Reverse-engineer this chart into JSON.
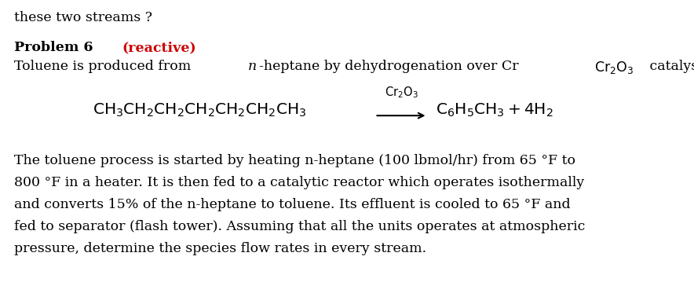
{
  "header": "these two streams ?",
  "prob_bold": "Problem 6 ",
  "prob_red": "(reactive)",
  "toluene_line_pre": "Toluene is produced from ",
  "toluene_line_n": "n",
  "toluene_line_post": "-heptane by dehydrogenation over Cr",
  "toluene_cr2o3": "Cr₂O₃",
  "toluene_catalyst": " catalyst:",
  "eq_lhs": "$\\mathregular{CH_3CH_2CH_2CH_2CH_2CH_2CH_3}$",
  "eq_arrow": "⟶",
  "eq_catalyst_top": "$\\mathregular{Cr_2O_3}$",
  "eq_rhs": "$\\mathregular{C_6H_5CH_3 + 4H_2}$",
  "para1": "The toluene process is started by heating n-heptane (100 lbmol/hr) from 65 °F to",
  "para2": "800 °F in a heater. It is then fed to a catalytic reactor which operates isothermally",
  "para3": "and converts 15% of the n-heptane to toluene. Its effluent is cooled to 65 °F and",
  "para4": "fed to separator (flash tower). Assuming that all the units operates at atmospheric",
  "para5": "pressure, determine the species flow rates in every stream.",
  "bg_color": "#ffffff",
  "text_color": "#000000",
  "red_color": "#cc0000",
  "fs_main": 12.5,
  "fs_eq": 14.5,
  "fs_catalyst": 10.5,
  "figwidth": 8.84,
  "figheight": 3.59,
  "dpi": 100
}
